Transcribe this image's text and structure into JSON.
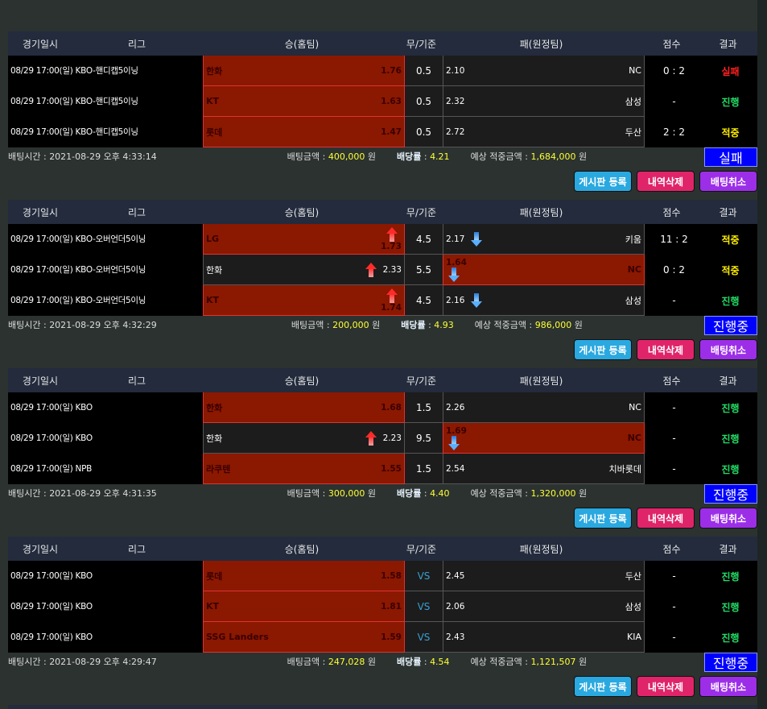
{
  "headers": [
    "경기일시",
    "리그",
    "승(홈팀)",
    "무/기준",
    "패(원정팀)",
    "점수",
    "결과"
  ],
  "labels": {
    "bet_time": "배팅시간 : ",
    "amount": "배팅금액 : ",
    "rate": "배당률",
    "rate_sep": " : ",
    "expected": "예상 적중금액 : ",
    "won": " 원",
    "btn_board": "게시판 등록",
    "btn_delete": "내역삭제",
    "btn_cancel": "배팅취소"
  },
  "colors": {
    "selected": "#8b1800",
    "status": "#0000ff",
    "fail": "#ff2020",
    "progress": "#22dd66",
    "hit": "#ffee00"
  },
  "bets": [
    {
      "rows": [
        {
          "dt": "08/29 17:00(일) KBO-핸디캡5이닝",
          "home": "한화",
          "home_odds": "1.76",
          "home_sel": true,
          "home_arrow": "",
          "line": "0.5",
          "away_odds": "2.10",
          "away": "NC",
          "away_sel": false,
          "away_arrow": "",
          "score": "0 : 2",
          "result": "실패",
          "rc": "fail"
        },
        {
          "dt": "08/29 17:00(일) KBO-핸디캡5이닝",
          "home": "KT",
          "home_odds": "1.63",
          "home_sel": true,
          "home_arrow": "",
          "line": "0.5",
          "away_odds": "2.32",
          "away": "삼성",
          "away_sel": false,
          "away_arrow": "",
          "score": "-",
          "result": "진행",
          "rc": "progress"
        },
        {
          "dt": "08/29 17:00(일) KBO-핸디캡5이닝",
          "home": "롯데",
          "home_odds": "1.47",
          "home_sel": true,
          "home_arrow": "",
          "line": "0.5",
          "away_odds": "2.72",
          "away": "두산",
          "away_sel": false,
          "away_arrow": "",
          "score": "2 : 2",
          "result": "적중",
          "rc": "hit"
        }
      ],
      "time": "2021-08-29 오후 4:33:14",
      "amount": "400,000",
      "rate": "4.21",
      "expected": "1,684,000",
      "status": "실패"
    },
    {
      "rows": [
        {
          "dt": "08/29 17:00(일) KBO-오버언더5이닝",
          "home": "LG",
          "home_odds": "1.73",
          "home_sel": true,
          "home_arrow": "up",
          "line": "4.5",
          "away_odds": "2.17",
          "away": "키움",
          "away_sel": false,
          "away_arrow": "down",
          "score": "11 : 2",
          "result": "적중",
          "rc": "hit"
        },
        {
          "dt": "08/29 17:00(일) KBO-오버언더5이닝",
          "home": "한화",
          "home_odds": "2.33",
          "home_sel": false,
          "home_arrow": "up",
          "line": "5.5",
          "away_odds": "1.64",
          "away": "NC",
          "away_sel": true,
          "away_arrow": "down",
          "score": "0 : 2",
          "result": "적중",
          "rc": "hit"
        },
        {
          "dt": "08/29 17:00(일) KBO-오버언더5이닝",
          "home": "KT",
          "home_odds": "1.74",
          "home_sel": true,
          "home_arrow": "up",
          "line": "4.5",
          "away_odds": "2.16",
          "away": "삼성",
          "away_sel": false,
          "away_arrow": "down",
          "score": "-",
          "result": "진행",
          "rc": "progress"
        }
      ],
      "time": "2021-08-29 오후 4:32:29",
      "amount": "200,000",
      "rate": "4.93",
      "expected": "986,000",
      "status": "진행중"
    },
    {
      "rows": [
        {
          "dt": "08/29 17:00(일) KBO",
          "home": "한화",
          "home_odds": "1.68",
          "home_sel": true,
          "home_arrow": "",
          "line": "1.5",
          "away_odds": "2.26",
          "away": "NC",
          "away_sel": false,
          "away_arrow": "",
          "score": "-",
          "result": "진행",
          "rc": "progress"
        },
        {
          "dt": "08/29 17:00(일) KBO",
          "home": "한화",
          "home_odds": "2.23",
          "home_sel": false,
          "home_arrow": "up",
          "line": "9.5",
          "away_odds": "1.69",
          "away": "NC",
          "away_sel": true,
          "away_arrow": "down",
          "score": "-",
          "result": "진행",
          "rc": "progress"
        },
        {
          "dt": "08/29 17:00(일) NPB",
          "home": "라쿠텐",
          "home_odds": "1.55",
          "home_sel": true,
          "home_arrow": "",
          "line": "1.5",
          "away_odds": "2.54",
          "away": "치바롯데",
          "away_sel": false,
          "away_arrow": "",
          "score": "-",
          "result": "진행",
          "rc": "progress"
        }
      ],
      "time": "2021-08-29 오후 4:31:35",
      "amount": "300,000",
      "rate": "4.40",
      "expected": "1,320,000",
      "status": "진행중"
    },
    {
      "rows": [
        {
          "dt": "08/29 17:00(일) KBO",
          "home": "롯데",
          "home_odds": "1.58",
          "home_sel": true,
          "home_arrow": "",
          "line": "VS",
          "away_odds": "2.45",
          "away": "두산",
          "away_sel": false,
          "away_arrow": "",
          "score": "-",
          "result": "진행",
          "rc": "progress"
        },
        {
          "dt": "08/29 17:00(일) KBO",
          "home": "KT",
          "home_odds": "1.81",
          "home_sel": true,
          "home_arrow": "",
          "line": "VS",
          "away_odds": "2.06",
          "away": "삼성",
          "away_sel": false,
          "away_arrow": "",
          "score": "-",
          "result": "진행",
          "rc": "progress"
        },
        {
          "dt": "08/29 17:00(일) KBO",
          "home": "SSG Landers",
          "home_odds": "1.59",
          "home_sel": true,
          "home_arrow": "",
          "line": "VS",
          "away_odds": "2.43",
          "away": "KIA",
          "away_sel": false,
          "away_arrow": "",
          "score": "-",
          "result": "진행",
          "rc": "progress"
        }
      ],
      "time": "2021-08-29 오후 4:29:47",
      "amount": "247,028",
      "rate": "4.54",
      "expected": "1,121,507",
      "status": "진행중"
    }
  ]
}
